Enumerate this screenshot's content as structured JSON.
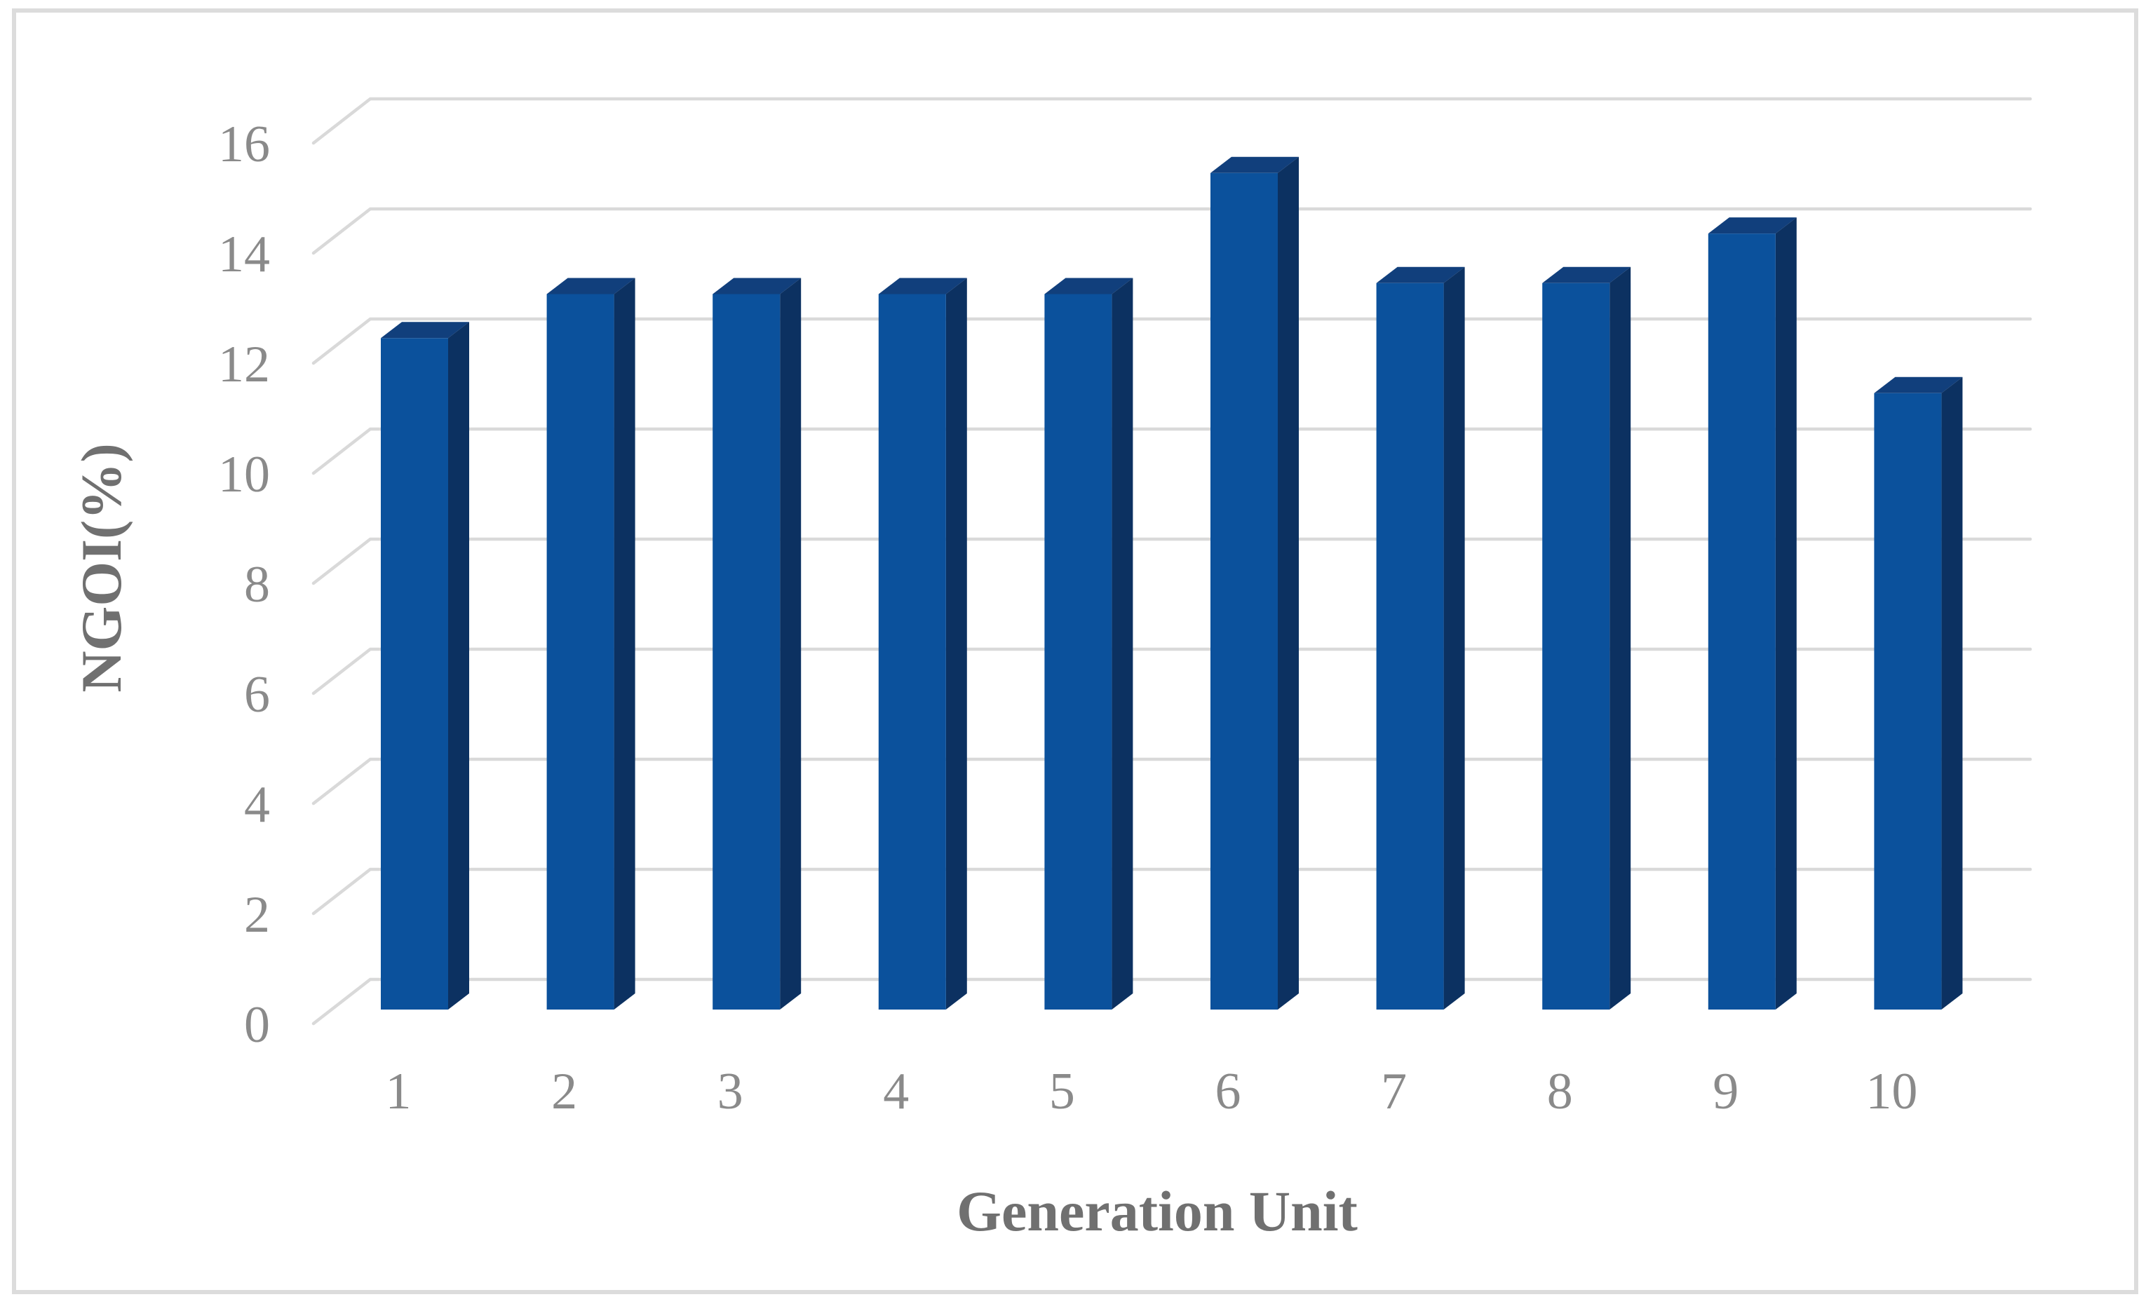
{
  "chart_data": {
    "type": "bar",
    "style_3d": true,
    "title": "",
    "xlabel": "Generation Unit",
    "ylabel": "NGOI(%)",
    "categories": [
      "1",
      "2",
      "3",
      "4",
      "5",
      "6",
      "7",
      "8",
      "9",
      "10"
    ],
    "values": [
      12.2,
      13.0,
      13.0,
      13.0,
      13.0,
      15.2,
      13.2,
      13.2,
      14.1,
      11.2
    ],
    "series": [
      {
        "name": "NGOI",
        "values": [
          12.2,
          13.0,
          13.0,
          13.0,
          13.0,
          15.2,
          13.2,
          13.2,
          14.1,
          11.2
        ]
      }
    ],
    "ylim": [
      0,
      16
    ],
    "ytick_step": 2,
    "yticks": [
      0,
      2,
      4,
      6,
      8,
      10,
      12,
      14,
      16
    ],
    "grid": true,
    "legend": false,
    "colors": {
      "bar_front": "#0B519C",
      "bar_top": "#113F7C",
      "bar_side": "#0C3161",
      "gridline": "#D9D9D9",
      "tick_label": "#8A8A8A",
      "axis_title": "#707070",
      "border": "#DCDCDC",
      "background": "#FFFFFF"
    }
  }
}
